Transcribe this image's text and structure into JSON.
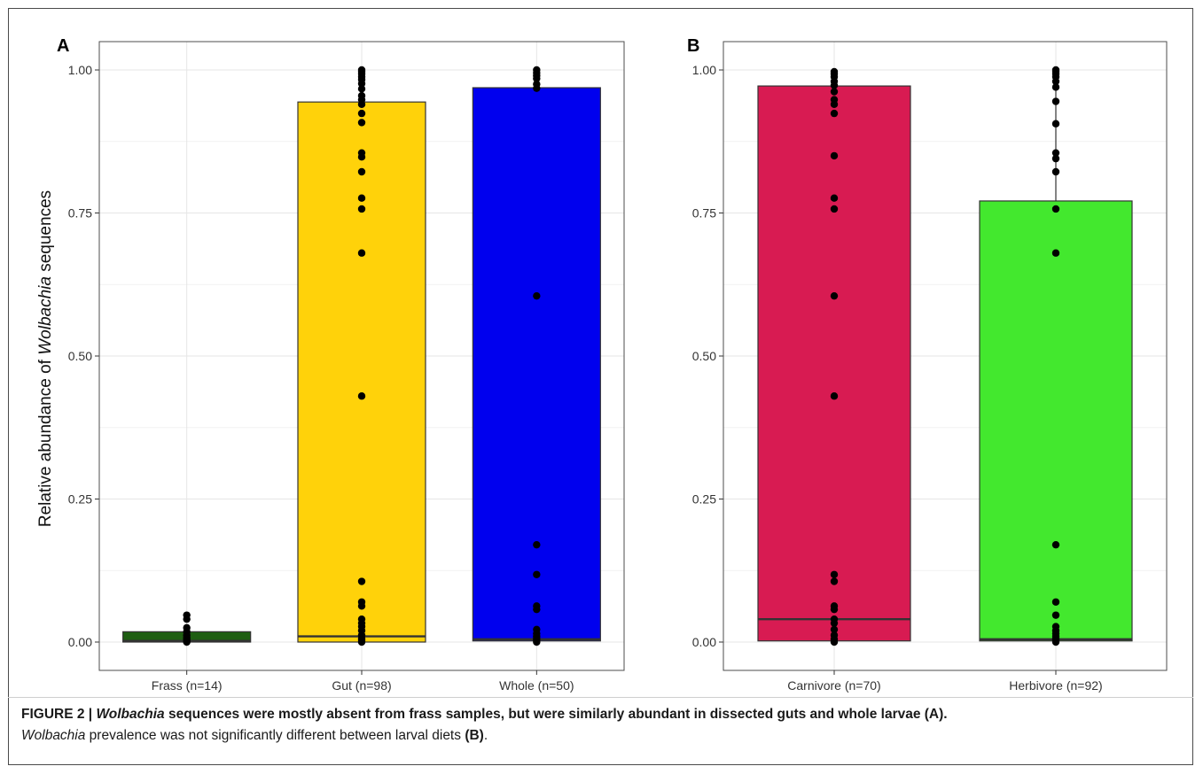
{
  "chart_data": [
    {
      "panel": "A",
      "type": "box",
      "ylabel_prefix": "Relative abundance of ",
      "ylabel_italic": "Wolbachia",
      "ylabel_suffix": " sequences",
      "ylim": [
        0,
        1
      ],
      "yticks": [
        "0.00",
        "0.25",
        "0.50",
        "0.75",
        "1.00"
      ],
      "grid": true,
      "categories": [
        "Frass (n=14)",
        "Gut (n=98)",
        "Whole (n=50)"
      ],
      "boxes": [
        {
          "q1": 0.0,
          "median": 0.002,
          "q3": 0.018,
          "whisker_low": 0.0,
          "whisker_high": 0.018,
          "color": "#1f5e12"
        },
        {
          "q1": 0.0,
          "median": 0.01,
          "q3": 0.944,
          "whisker_low": 0.0,
          "whisker_high": 1.0,
          "color": "#ffd20a"
        },
        {
          "q1": 0.002,
          "median": 0.005,
          "q3": 0.969,
          "whisker_low": 0.0,
          "whisker_high": 1.0,
          "color": "#0000ee"
        }
      ],
      "points": [
        [
          0.047,
          0.04,
          0.025,
          0.018,
          0.012,
          0.008,
          0.005,
          0.003,
          0.001,
          0.0
        ],
        [
          1.0,
          0.997,
          0.993,
          0.988,
          0.983,
          0.976,
          0.967,
          0.955,
          0.948,
          0.94,
          0.924,
          0.908,
          0.855,
          0.848,
          0.822,
          0.776,
          0.757,
          0.68,
          0.43,
          0.106,
          0.07,
          0.063,
          0.04,
          0.033,
          0.027,
          0.02,
          0.012,
          0.006,
          0.003,
          0.0
        ],
        [
          1.0,
          0.995,
          0.99,
          0.985,
          0.975,
          0.968,
          0.605,
          0.17,
          0.118,
          0.063,
          0.057,
          0.022,
          0.015,
          0.01,
          0.006,
          0.003,
          0.0
        ]
      ]
    },
    {
      "panel": "B",
      "type": "box",
      "ylim": [
        0,
        1
      ],
      "yticks": [
        "0.00",
        "0.25",
        "0.50",
        "0.75",
        "1.00"
      ],
      "grid": true,
      "categories": [
        "Carnivore (n=70)",
        "Herbivore (n=92)"
      ],
      "boxes": [
        {
          "q1": 0.002,
          "median": 0.04,
          "q3": 0.972,
          "whisker_low": 0.0,
          "whisker_high": 1.0,
          "color": "#d81b52"
        },
        {
          "q1": 0.002,
          "median": 0.005,
          "q3": 0.771,
          "whisker_low": 0.0,
          "whisker_high": 1.0,
          "color": "#43e82e"
        }
      ],
      "points": [
        [
          0.997,
          0.993,
          0.988,
          0.98,
          0.973,
          0.962,
          0.948,
          0.94,
          0.924,
          0.85,
          0.776,
          0.757,
          0.605,
          0.43,
          0.118,
          0.106,
          0.063,
          0.057,
          0.04,
          0.033,
          0.022,
          0.012,
          0.005,
          0.0
        ],
        [
          1.0,
          0.997,
          0.993,
          0.988,
          0.98,
          0.97,
          0.945,
          0.906,
          0.855,
          0.845,
          0.822,
          0.757,
          0.68,
          0.17,
          0.07,
          0.047,
          0.027,
          0.02,
          0.015,
          0.01,
          0.006,
          0.003,
          0.0
        ]
      ]
    }
  ],
  "caption": {
    "label": "FIGURE 2 | ",
    "organism_bold": "Wolbachia",
    "line1_rest": " sequences were mostly absent from frass samples, but were similarly abundant in dissected guts and whole larvae (A).",
    "organism": "Wolbachia",
    "line2_rest": " prevalence was not significantly different between larval diets ",
    "line2_ref": "(B)",
    "line2_end": "."
  }
}
